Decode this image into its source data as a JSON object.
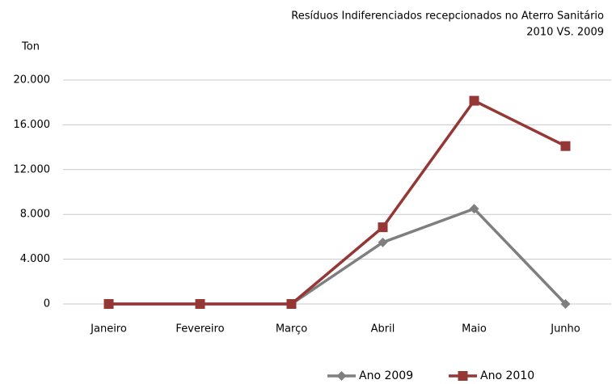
{
  "chart_data": {
    "type": "line",
    "title": "Resíduos Indiferenciados  recepcionados no Aterro Sanitário",
    "subtitle": "2010 VS. 2009",
    "y_label": "Ton",
    "categories": [
      "Janeiro",
      "Fevereiro",
      "Março",
      "Abril",
      "Maio",
      "Junho"
    ],
    "series": [
      {
        "name": "Ano 2009",
        "color": "#7f7f7f",
        "marker": "diamond",
        "values": [
          0,
          0,
          0,
          5500,
          8500,
          0
        ]
      },
      {
        "name": "Ano 2010",
        "color": "#953735",
        "marker": "square",
        "values": [
          0,
          0,
          0,
          6850,
          18150,
          14100
        ]
      }
    ],
    "ylim": [
      0,
      20000
    ],
    "yticks": [
      0,
      {
        "value": 4000,
        "label": "4.000"
      },
      {
        "value": 8000,
        "label": "8.000"
      },
      {
        "value": 12000,
        "label": "12.000"
      },
      {
        "value": 16000,
        "label": "16.000"
      },
      {
        "value": 20000,
        "label": "20.000"
      }
    ],
    "grid": true,
    "legend": "bottom"
  }
}
